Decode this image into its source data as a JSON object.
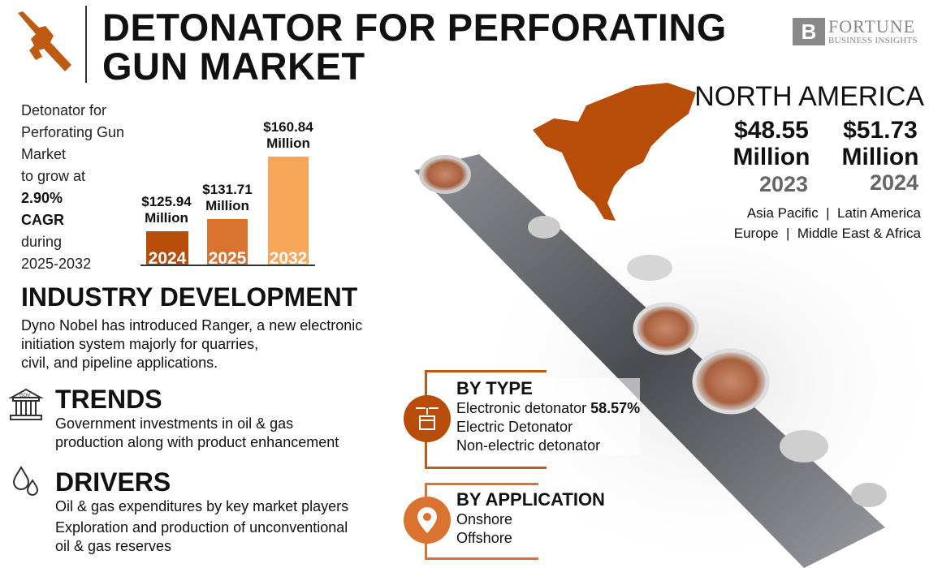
{
  "header": {
    "title_line1": "DETONATOR FOR PERFORATING",
    "title_line2": "GUN MARKET",
    "logo_brand": "FORTUNE",
    "logo_sub": "BUSINESS INSIGHTS",
    "icon": "rifle-icon"
  },
  "intro": {
    "line1": "Detonator for",
    "line2": "Perforating Gun",
    "line3": "Market",
    "line4": "to grow at",
    "cagr": "2.90%",
    "cagr_label": "CAGR",
    "line5": "during",
    "period": "2025-2032"
  },
  "chart_data": {
    "type": "bar",
    "categories": [
      "2024",
      "2025",
      "2032"
    ],
    "values": [
      125.94,
      131.71,
      160.84
    ],
    "labels": [
      "$125.94",
      "$131.71",
      "$160.84"
    ],
    "unit": "Million",
    "colors": [
      "#b84d0a",
      "#d9732f",
      "#f8a65a"
    ]
  },
  "industry": {
    "heading": "INDUSTRY DEVELOPMENT",
    "line1": "Dyno Nobel has introduced Ranger, a new electronic",
    "line2": "initiation system majorly for quarries,",
    "line3": "civil, and pipeline applications."
  },
  "trends": {
    "heading": "TRENDS",
    "icon": "government-building-icon",
    "line1": "Government investments in oil & gas",
    "line2": "production along with product enhancement"
  },
  "drivers": {
    "heading": "DRIVERS",
    "icon": "oil-drops-icon",
    "line1": "Oil & gas expenditures by key market players",
    "line2": "Exploration and production of unconventional",
    "line3": "oil & gas reserves"
  },
  "region": {
    "name": "NORTH AMERICA",
    "v2023": "$48.55",
    "v2024": "$51.73",
    "unit": "Million",
    "y2023": "2023",
    "y2024": "2024",
    "others1": "Asia Pacific  |  Latin America",
    "others2": "Europe  |  Middle East & Africa"
  },
  "by_type": {
    "heading": "BY TYPE",
    "item1": "Electronic detonator",
    "item1_share": "58.57%",
    "item2": "Electric Detonator",
    "item3": "Non-electric detonator",
    "icon": "detonator-icon"
  },
  "by_application": {
    "heading": "BY APPLICATION",
    "item1": "Onshore",
    "item2": "Offshore",
    "icon": "location-pin-icon"
  },
  "colors": {
    "accent": "#c05a12",
    "light": "#f8a65a"
  }
}
